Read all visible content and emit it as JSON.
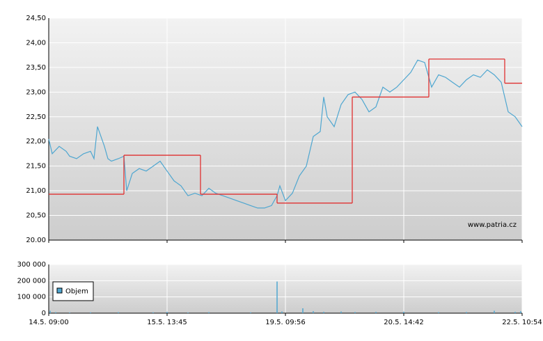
{
  "chart_data": [
    {
      "type": "line",
      "xlim": [
        0,
        680
      ],
      "xticks": [
        {
          "value": 0,
          "label": "14.5. 09:00"
        },
        {
          "value": 170,
          "label": "15.5. 13:45"
        },
        {
          "value": 340,
          "label": "19.5. 09:56"
        },
        {
          "value": 510,
          "label": "20.5. 14:42"
        },
        {
          "value": 680,
          "label": "22.5. 10:54"
        }
      ],
      "ylim": [
        20,
        24.5
      ],
      "yticks": [
        {
          "value": 20,
          "label": "20.00"
        },
        {
          "value": 20.5,
          "label": "20,50"
        },
        {
          "value": 21,
          "label": "21,00"
        },
        {
          "value": 21.5,
          "label": "21,50"
        },
        {
          "value": 22,
          "label": "22,00"
        },
        {
          "value": 22.5,
          "label": "22,50"
        },
        {
          "value": 23,
          "label": "23,00"
        },
        {
          "value": 23.5,
          "label": "23,50"
        },
        {
          "value": 24,
          "label": "24,00"
        },
        {
          "value": 24.5,
          "label": "24,50"
        }
      ],
      "grid": true,
      "annotation": "www.patria.cz",
      "series": [
        {
          "color": "#4ea6d0",
          "x": [
            0,
            5,
            15,
            25,
            30,
            40,
            50,
            60,
            65,
            70,
            75,
            80,
            85,
            90,
            100,
            108,
            112,
            120,
            130,
            140,
            150,
            160,
            170,
            180,
            190,
            200,
            210,
            220,
            230,
            240,
            250,
            260,
            270,
            280,
            290,
            300,
            310,
            320,
            328,
            332,
            340,
            350,
            360,
            370,
            380,
            390,
            395,
            400,
            410,
            420,
            430,
            440,
            450,
            460,
            470,
            480,
            490,
            500,
            510,
            520,
            530,
            540,
            550,
            560,
            570,
            580,
            590,
            600,
            610,
            620,
            630,
            640,
            650,
            660,
            670,
            680
          ],
          "values": [
            22.05,
            21.75,
            21.9,
            21.8,
            21.7,
            21.65,
            21.75,
            21.8,
            21.65,
            22.3,
            22.1,
            21.9,
            21.65,
            21.6,
            21.65,
            21.7,
            21.0,
            21.35,
            21.45,
            21.4,
            21.5,
            21.6,
            21.4,
            21.2,
            21.1,
            20.9,
            20.95,
            20.9,
            21.05,
            20.95,
            20.9,
            20.85,
            20.8,
            20.75,
            20.7,
            20.65,
            20.65,
            20.7,
            20.9,
            21.1,
            20.8,
            20.95,
            21.3,
            21.5,
            22.1,
            22.2,
            22.9,
            22.5,
            22.3,
            22.75,
            22.95,
            23.0,
            22.85,
            22.6,
            22.7,
            23.1,
            23.0,
            23.1,
            23.25,
            23.4,
            23.65,
            23.6,
            23.1,
            23.35,
            23.3,
            23.2,
            23.1,
            23.25,
            23.35,
            23.3,
            23.45,
            23.35,
            23.2,
            22.6,
            22.5,
            22.3
          ]
        },
        {
          "color": "#e03030",
          "step": "post",
          "x": [
            0,
            108,
            218,
            328,
            436,
            546,
            655
          ],
          "values": [
            20.93,
            21.72,
            20.93,
            20.75,
            22.9,
            23.67,
            23.18
          ]
        }
      ]
    },
    {
      "type": "bar",
      "xlim": [
        0,
        680
      ],
      "ylim": [
        0,
        300000
      ],
      "yticks": [
        {
          "value": 0,
          "label": "0"
        },
        {
          "value": 100000,
          "label": "100 000"
        },
        {
          "value": 200000,
          "label": "200 000"
        },
        {
          "value": 300000,
          "label": "300 000"
        }
      ],
      "grid": true,
      "legend": "top-left",
      "series": [
        {
          "name": "Objem",
          "color": "#4ea6d0",
          "x": [
            2,
            10,
            30,
            60,
            100,
            150,
            170,
            200,
            230,
            290,
            328,
            335,
            365,
            380,
            395,
            420,
            440,
            470,
            510,
            560,
            600,
            640,
            670,
            678
          ],
          "values": [
            15000,
            6000,
            4000,
            5000,
            6000,
            5000,
            8000,
            4000,
            6000,
            5000,
            195000,
            10000,
            30000,
            12000,
            8000,
            10000,
            7000,
            8000,
            9000,
            6000,
            7000,
            15000,
            8000,
            12000
          ]
        }
      ]
    }
  ]
}
